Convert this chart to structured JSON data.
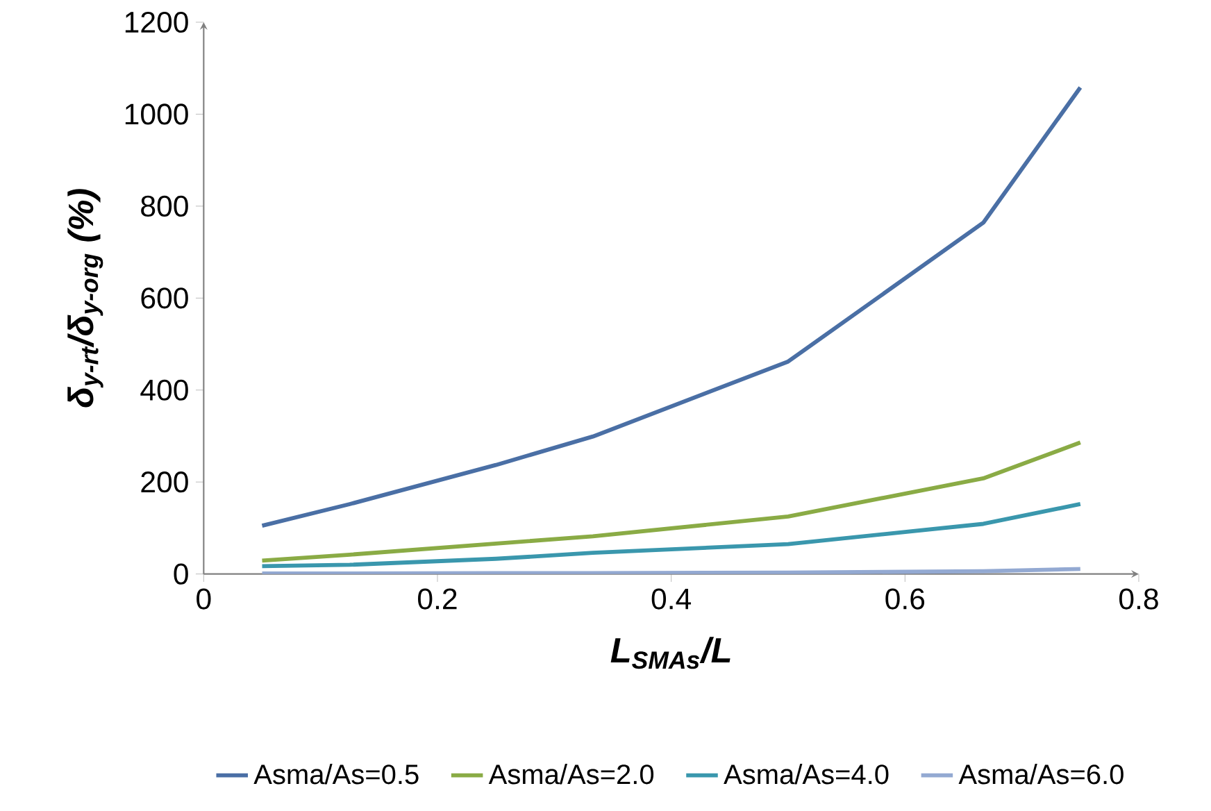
{
  "chart_data": {
    "type": "line",
    "xlabel": "L$_{SMAs}$/L",
    "ylabel": "δ$_{y-rt}$/δ$_{y-org}$ (%)",
    "x": [
      0.05,
      0.125,
      0.25,
      0.333,
      0.5,
      0.667,
      0.75
    ],
    "series": [
      {
        "name": "Asma/As=0.5",
        "color": "#4a6fa5",
        "values": [
          105,
          152,
          237,
          299,
          462,
          764,
          1058
        ]
      },
      {
        "name": "Asma/As=2.0",
        "color": "#8aab45",
        "values": [
          29,
          42,
          66,
          82,
          125,
          208,
          286
        ]
      },
      {
        "name": "Asma/As=4.0",
        "color": "#3a97ad",
        "values": [
          17,
          20,
          33,
          46,
          65,
          109,
          152
        ]
      },
      {
        "name": "Asma/As=6.0",
        "color": "#93a9d2",
        "values": [
          1,
          1,
          2,
          2,
          3,
          6,
          11
        ]
      }
    ],
    "xlim": [
      0,
      0.8
    ],
    "xticks": [
      0,
      0.2,
      0.4,
      0.6,
      0.8
    ],
    "ylim": [
      0,
      1200
    ],
    "yticks": [
      0,
      200,
      400,
      600,
      800,
      1000,
      1200
    ],
    "grid": false,
    "legend": "bottom",
    "marker": "none",
    "line_style": "solid"
  }
}
